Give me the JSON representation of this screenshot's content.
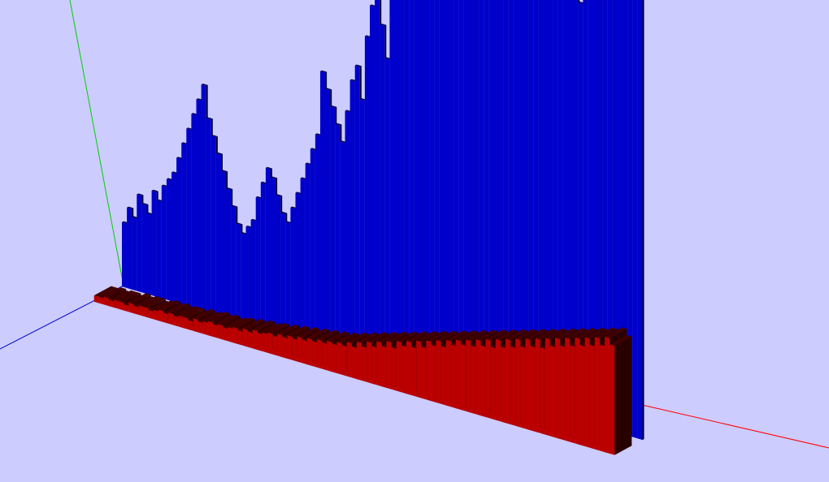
{
  "scene": {
    "background": "#ccccff",
    "axis_colors": {
      "x": "#ff0000",
      "y": "#00cc00",
      "z": "#0000cc"
    }
  },
  "chart_data": {
    "type": "bar",
    "projection": "3d-perspective",
    "title": "",
    "xlabel": "",
    "ylabel": "",
    "zlabel": "",
    "grid": false,
    "legend": "none",
    "ylim": [
      0,
      100
    ],
    "series": [
      {
        "color": "#0000cc",
        "values": [
          8,
          10,
          9,
          12,
          11,
          10,
          13,
          12,
          14,
          15,
          16,
          18,
          20,
          22,
          24,
          26,
          28,
          24,
          22,
          20,
          18,
          16,
          14,
          12,
          11,
          12,
          13,
          16,
          18,
          20,
          19,
          17,
          15,
          14,
          16,
          18,
          20,
          22,
          24,
          26,
          34,
          32,
          30,
          28,
          26,
          30,
          34,
          36,
          32,
          40,
          44,
          46,
          42,
          38,
          48,
          60,
          58,
          56,
          54,
          52,
          50,
          62,
          70,
          72,
          68,
          66,
          64,
          58,
          62,
          80,
          84,
          86,
          70,
          78,
          90,
          88,
          72,
          74,
          76,
          70,
          66,
          60,
          58,
          62,
          66,
          68,
          70,
          64,
          60,
          62,
          58,
          56,
          52,
          54,
          56,
          60,
          66,
          70,
          74,
          76,
          80,
          82,
          64,
          84,
          88
        ]
      },
      {
        "color": "#bb0000",
        "values": [
          4,
          4,
          5,
          4,
          5,
          5,
          4,
          6,
          5,
          6,
          6,
          5,
          6,
          7,
          6,
          7,
          6,
          7,
          7,
          6,
          8,
          7,
          8,
          9,
          8,
          9,
          8,
          9,
          10,
          9,
          11,
          10,
          12,
          11,
          12,
          13,
          12,
          14,
          13,
          15,
          14,
          16,
          15,
          17,
          16,
          18,
          17,
          19,
          18,
          20,
          19,
          22,
          20,
          24,
          22,
          26,
          24,
          28,
          26,
          30,
          27,
          32,
          30,
          34,
          31,
          36,
          33,
          38,
          36,
          40,
          37,
          42,
          40,
          44,
          42,
          46,
          43,
          48,
          45,
          50,
          46,
          52,
          48,
          54,
          50,
          56,
          52,
          58,
          54,
          60,
          55,
          62,
          58,
          64,
          60,
          66,
          62,
          68,
          64,
          70,
          66,
          72,
          68,
          74,
          70
        ]
      }
    ]
  }
}
